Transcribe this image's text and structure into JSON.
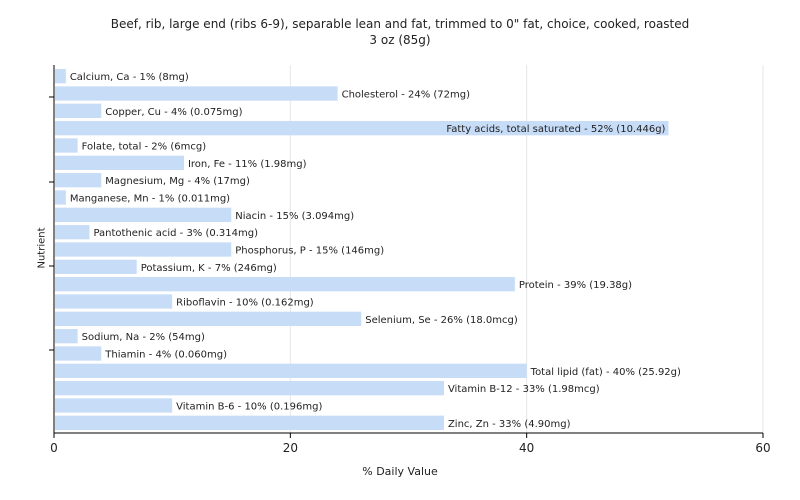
{
  "chart_data": {
    "type": "bar",
    "orientation": "horizontal",
    "title_line1": "Beef, rib, large end (ribs 6-9), separable lean and fat, trimmed to 0\" fat, choice, cooked, roasted",
    "title_line2": "3 oz (85g)",
    "xlabel": "% Daily Value",
    "ylabel": "Nutrient",
    "xlim": [
      0,
      60
    ],
    "xticks": [
      0,
      20,
      40,
      60
    ],
    "grid": true,
    "bar_color": "#c6dcf7",
    "categories": [
      "Calcium, Ca - 1% (8mg)",
      "Cholesterol - 24% (72mg)",
      "Copper, Cu - 4% (0.075mg)",
      "Fatty acids, total saturated - 52% (10.446g)",
      "Folate, total - 2% (6mcg)",
      "Iron, Fe - 11% (1.98mg)",
      "Magnesium, Mg - 4% (17mg)",
      "Manganese, Mn - 1% (0.011mg)",
      "Niacin - 15% (3.094mg)",
      "Pantothenic acid - 3% (0.314mg)",
      "Phosphorus, P - 15% (146mg)",
      "Potassium, K - 7% (246mg)",
      "Protein - 39% (19.38g)",
      "Riboflavin - 10% (0.162mg)",
      "Selenium, Se - 26% (18.0mcg)",
      "Sodium, Na - 2% (54mg)",
      "Thiamin - 4% (0.060mg)",
      "Total lipid (fat) - 40% (25.92g)",
      "Vitamin B-12 - 33% (1.98mcg)",
      "Vitamin B-6 - 10% (0.196mg)",
      "Zinc, Zn - 33% (4.90mg)"
    ],
    "values": [
      1,
      24,
      4,
      52,
      2,
      11,
      4,
      1,
      15,
      3,
      15,
      7,
      39,
      10,
      26,
      2,
      4,
      40,
      33,
      10,
      33
    ]
  }
}
